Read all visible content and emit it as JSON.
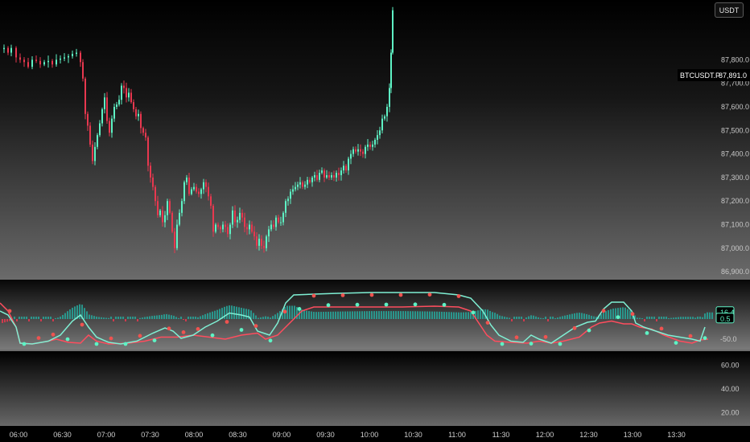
{
  "currency_button": "USDT",
  "symbol_label": "BTCUSDT.P",
  "last_price": "87,891.0",
  "chart_data": [
    {
      "type": "candlestick",
      "series": [
        {
          "name": "BTCUSDT.P",
          "color_up": "#5ef2c4",
          "color_down": "#e8384f"
        }
      ],
      "price_ticks": [
        "86,900.0",
        "87,000.0",
        "87,100.0",
        "87,200.0",
        "87,300.0",
        "87,400.0",
        "87,500.0",
        "87,600.0",
        "87,700.0",
        "87,800.0"
      ],
      "ylim": [
        86880,
        88040
      ],
      "x_ticks": [
        "06:00",
        "06:30",
        "07:00",
        "07:30",
        "08:00",
        "08:30",
        "09:00",
        "09:30",
        "10:00",
        "10:30",
        "11:00",
        "11:30",
        "12:00",
        "12:30",
        "13:00",
        "13:30"
      ],
      "close_path": [
        [
          0,
          87845
        ],
        [
          5,
          87850
        ],
        [
          10,
          87830
        ],
        [
          14,
          87850
        ],
        [
          20,
          87810
        ],
        [
          25,
          87800
        ],
        [
          30,
          87790
        ],
        [
          35,
          87770
        ],
        [
          40,
          87800
        ],
        [
          45,
          87795
        ],
        [
          50,
          87780
        ],
        [
          55,
          87790
        ],
        [
          60,
          87795
        ],
        [
          65,
          87780
        ],
        [
          70,
          87800
        ],
        [
          75,
          87805
        ],
        [
          80,
          87810
        ],
        [
          85,
          87815
        ],
        [
          90,
          87825
        ],
        [
          95,
          87830
        ],
        [
          100,
          87790
        ],
        [
          103,
          87720
        ],
        [
          106,
          87570
        ],
        [
          109,
          87520
        ],
        [
          112,
          87440
        ],
        [
          115,
          87370
        ],
        [
          118,
          87430
        ],
        [
          121,
          87480
        ],
        [
          124,
          87530
        ],
        [
          127,
          87590
        ],
        [
          130,
          87640
        ],
        [
          133,
          87540
        ],
        [
          136,
          87490
        ],
        [
          139,
          87550
        ],
        [
          142,
          87600
        ],
        [
          145,
          87610
        ],
        [
          148,
          87630
        ],
        [
          151,
          87690
        ],
        [
          154,
          87680
        ],
        [
          157,
          87640
        ],
        [
          160,
          87660
        ],
        [
          163,
          87620
        ],
        [
          166,
          87590
        ],
        [
          169,
          87560
        ],
        [
          172,
          87570
        ],
        [
          175,
          87510
        ],
        [
          178,
          87490
        ],
        [
          181,
          87470
        ],
        [
          184,
          87350
        ],
        [
          187,
          87300
        ],
        [
          190,
          87260
        ],
        [
          193,
          87200
        ],
        [
          196,
          87140
        ],
        [
          199,
          87160
        ],
        [
          202,
          87110
        ],
        [
          205,
          87140
        ],
        [
          208,
          87200
        ],
        [
          211,
          87150
        ],
        [
          214,
          87070
        ],
        [
          217,
          87000
        ],
        [
          220,
          87100
        ],
        [
          223,
          87150
        ],
        [
          226,
          87200
        ],
        [
          229,
          87280
        ],
        [
          232,
          87300
        ],
        [
          235,
          87230
        ],
        [
          238,
          87250
        ],
        [
          241,
          87260
        ],
        [
          244,
          87240
        ],
        [
          247,
          87230
        ],
        [
          250,
          87250
        ],
        [
          253,
          87280
        ],
        [
          256,
          87260
        ],
        [
          259,
          87220
        ],
        [
          262,
          87180
        ],
        [
          265,
          87070
        ],
        [
          268,
          87100
        ],
        [
          271,
          87090
        ],
        [
          274,
          87080
        ],
        [
          277,
          87100
        ],
        [
          280,
          87090
        ],
        [
          283,
          87060
        ],
        [
          286,
          87100
        ],
        [
          289,
          87160
        ],
        [
          292,
          87110
        ],
        [
          295,
          87120
        ],
        [
          298,
          87150
        ],
        [
          301,
          87130
        ],
        [
          304,
          87090
        ],
        [
          307,
          87080
        ],
        [
          310,
          87100
        ],
        [
          313,
          87070
        ],
        [
          316,
          87050
        ],
        [
          319,
          87010
        ],
        [
          322,
          87040
        ],
        [
          325,
          87010
        ],
        [
          328,
          87000
        ],
        [
          331,
          87050
        ],
        [
          334,
          87080
        ],
        [
          337,
          87100
        ],
        [
          340,
          87090
        ],
        [
          343,
          87130
        ],
        [
          346,
          87110
        ],
        [
          349,
          87110
        ],
        [
          352,
          87150
        ],
        [
          355,
          87200
        ],
        [
          358,
          87210
        ],
        [
          361,
          87240
        ],
        [
          364,
          87250
        ],
        [
          367,
          87260
        ],
        [
          370,
          87270
        ],
        [
          373,
          87280
        ],
        [
          376,
          87260
        ],
        [
          379,
          87270
        ],
        [
          382,
          87290
        ],
        [
          385,
          87280
        ],
        [
          388,
          87300
        ],
        [
          391,
          87310
        ],
        [
          394,
          87290
        ],
        [
          397,
          87320
        ],
        [
          400,
          87330
        ],
        [
          403,
          87300
        ],
        [
          406,
          87310
        ],
        [
          409,
          87300
        ],
        [
          412,
          87310
        ],
        [
          415,
          87300
        ],
        [
          418,
          87320
        ],
        [
          421,
          87310
        ],
        [
          424,
          87330
        ],
        [
          427,
          87350
        ],
        [
          430,
          87330
        ],
        [
          433,
          87380
        ],
        [
          436,
          87400
        ],
        [
          439,
          87420
        ],
        [
          442,
          87410
        ],
        [
          445,
          87420
        ],
        [
          448,
          87410
        ],
        [
          451,
          87400
        ],
        [
          454,
          87430
        ],
        [
          457,
          87440
        ],
        [
          460,
          87430
        ],
        [
          463,
          87440
        ],
        [
          466,
          87460
        ],
        [
          469,
          87480
        ],
        [
          472,
          87500
        ],
        [
          475,
          87550
        ],
        [
          478,
          87560
        ],
        [
          481,
          87600
        ],
        [
          484,
          87680
        ],
        [
          486,
          87830
        ],
        [
          488,
          88010
        ]
      ],
      "oscillator": {
        "y_ticks": [
          "16.4",
          "0.5",
          "-50.0"
        ],
        "y_ticks_color": [
          "#5ef2c4",
          "#5ef2c4",
          "#c9c9c9"
        ],
        "ylim": [
          -70,
          90
        ],
        "line_teal": [
          [
            0,
            20
          ],
          [
            10,
            10
          ],
          [
            20,
            -20
          ],
          [
            25,
            -60
          ],
          [
            40,
            -62
          ],
          [
            60,
            -55
          ],
          [
            75,
            -40
          ],
          [
            90,
            -5
          ],
          [
            100,
            10
          ],
          [
            110,
            -20
          ],
          [
            120,
            -45
          ],
          [
            135,
            -58
          ],
          [
            150,
            -62
          ],
          [
            170,
            -55
          ],
          [
            190,
            -35
          ],
          [
            205,
            -22
          ],
          [
            215,
            -30
          ],
          [
            225,
            -48
          ],
          [
            240,
            -40
          ],
          [
            255,
            -20
          ],
          [
            270,
            -5
          ],
          [
            285,
            15
          ],
          [
            300,
            10
          ],
          [
            310,
            5
          ],
          [
            320,
            -30
          ],
          [
            335,
            -40
          ],
          [
            345,
            -10
          ],
          [
            355,
            40
          ],
          [
            365,
            60
          ],
          [
            390,
            62
          ],
          [
            420,
            64
          ],
          [
            460,
            66
          ],
          [
            500,
            66
          ],
          [
            540,
            66
          ],
          [
            570,
            60
          ],
          [
            585,
            52
          ],
          [
            600,
            20
          ],
          [
            610,
            -15
          ],
          [
            620,
            -40
          ],
          [
            635,
            -55
          ],
          [
            650,
            -58
          ],
          [
            660,
            -40
          ],
          [
            670,
            -50
          ],
          [
            685,
            -60
          ],
          [
            700,
            -40
          ],
          [
            715,
            -20
          ],
          [
            730,
            -8
          ],
          [
            740,
            -5
          ],
          [
            750,
            25
          ],
          [
            760,
            42
          ],
          [
            775,
            42
          ],
          [
            785,
            20
          ],
          [
            790,
            -10
          ],
          [
            800,
            -20
          ],
          [
            815,
            -30
          ],
          [
            830,
            -40
          ],
          [
            845,
            -45
          ],
          [
            860,
            -50
          ],
          [
            870,
            -55
          ],
          [
            876,
            -20
          ]
        ],
        "line_red": [
          [
            0,
            40
          ],
          [
            10,
            20
          ],
          [
            20,
            -20
          ],
          [
            25,
            -60
          ],
          [
            40,
            -62
          ],
          [
            60,
            -55
          ],
          [
            70,
            -50
          ],
          [
            85,
            -58
          ],
          [
            100,
            -60
          ],
          [
            110,
            -40
          ],
          [
            120,
            -55
          ],
          [
            135,
            -62
          ],
          [
            160,
            -60
          ],
          [
            180,
            -55
          ],
          [
            200,
            -45
          ],
          [
            220,
            -45
          ],
          [
            240,
            -40
          ],
          [
            260,
            -45
          ],
          [
            280,
            -50
          ],
          [
            300,
            -40
          ],
          [
            320,
            -35
          ],
          [
            330,
            -50
          ],
          [
            345,
            -40
          ],
          [
            355,
            -20
          ],
          [
            365,
            0
          ],
          [
            375,
            20
          ],
          [
            390,
            30
          ],
          [
            420,
            30
          ],
          [
            460,
            30
          ],
          [
            500,
            30
          ],
          [
            540,
            32
          ],
          [
            570,
            30
          ],
          [
            585,
            20
          ],
          [
            595,
            -10
          ],
          [
            605,
            -40
          ],
          [
            615,
            -55
          ],
          [
            635,
            -58
          ],
          [
            655,
            -60
          ],
          [
            670,
            -55
          ],
          [
            685,
            -60
          ],
          [
            700,
            -55
          ],
          [
            720,
            -45
          ],
          [
            735,
            -20
          ],
          [
            745,
            -10
          ],
          [
            760,
            -5
          ],
          [
            775,
            -12
          ],
          [
            785,
            -12
          ],
          [
            795,
            -20
          ],
          [
            810,
            -25
          ],
          [
            825,
            -40
          ],
          [
            845,
            -55
          ],
          [
            860,
            -60
          ],
          [
            870,
            -52
          ],
          [
            880,
            -50
          ]
        ],
        "hist_pos_color": "#26a69a",
        "hist_neg_color": "#e8384f",
        "dot_up_color": "#5ef2c4",
        "dot_down_color": "#ef5350"
      }
    },
    {
      "type": "line",
      "y_ticks": [
        "60.00",
        "40.00",
        "20.00"
      ],
      "ylim": [
        10,
        70
      ],
      "series": []
    }
  ]
}
